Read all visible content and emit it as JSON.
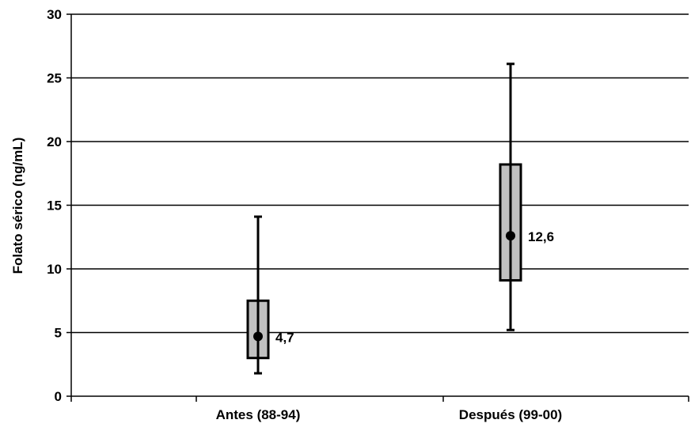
{
  "chart_data": {
    "type": "box",
    "title": "",
    "xlabel": "",
    "ylabel": "Folato sérico (ng/mL)",
    "ylim": [
      0,
      30
    ],
    "yticks": [
      0,
      5,
      10,
      15,
      20,
      25,
      30
    ],
    "grid": true,
    "legend": "none",
    "categories": [
      "Antes (88-94)",
      "Después (99-00)"
    ],
    "boxes": [
      {
        "category": "Antes (88-94)",
        "min": 1.8,
        "q1": 3.0,
        "median": 4.7,
        "q3": 7.5,
        "max": 14.1,
        "median_label": "4,7"
      },
      {
        "category": "Después (99-00)",
        "min": 5.2,
        "q1": 9.1,
        "median": 12.6,
        "q3": 18.2,
        "max": 26.1,
        "median_label": "12,6"
      }
    ],
    "colors": {
      "box_fill": "#c0c0c0",
      "stroke": "#000000",
      "grid": "#000000"
    }
  }
}
